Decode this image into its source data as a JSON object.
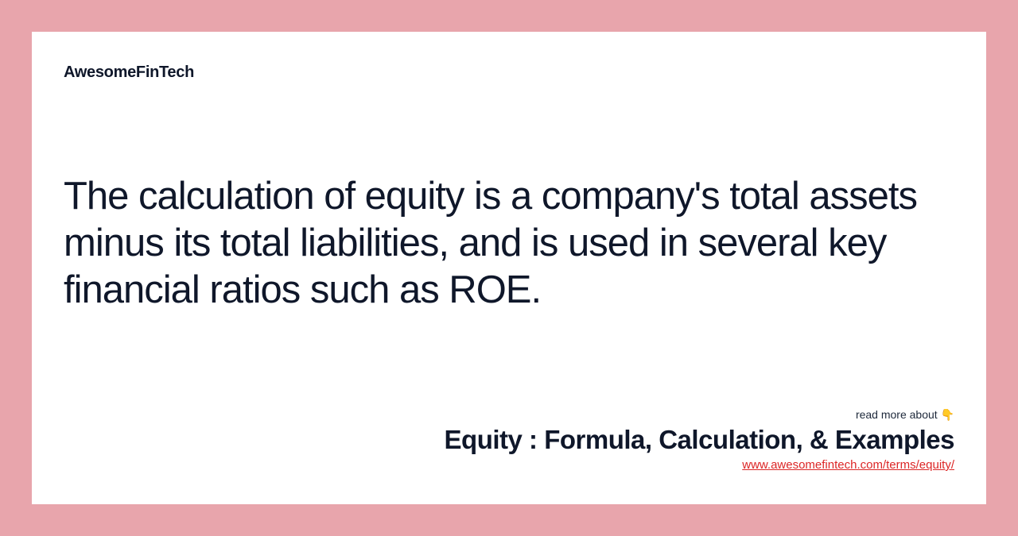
{
  "colors": {
    "background": "#e8a5ac",
    "card_background": "#ffffff",
    "text_primary": "#0f172a",
    "link": "#dc2626"
  },
  "brand": "AwesomeFinTech",
  "main_text": "The calculation of equity is a company's total assets minus its total liabilities, and is used in several key financial ratios such as ROE.",
  "footer": {
    "read_more": "read more about 👇",
    "title": "Equity : Formula, Calculation, & Examples",
    "link": "www.awesomefintech.com/terms/equity/"
  },
  "typography": {
    "brand_fontsize": 20,
    "brand_weight": 800,
    "main_fontsize": 49,
    "main_weight": 400,
    "title_fontsize": 33,
    "title_weight": 700,
    "readmore_fontsize": 14,
    "link_fontsize": 15
  }
}
